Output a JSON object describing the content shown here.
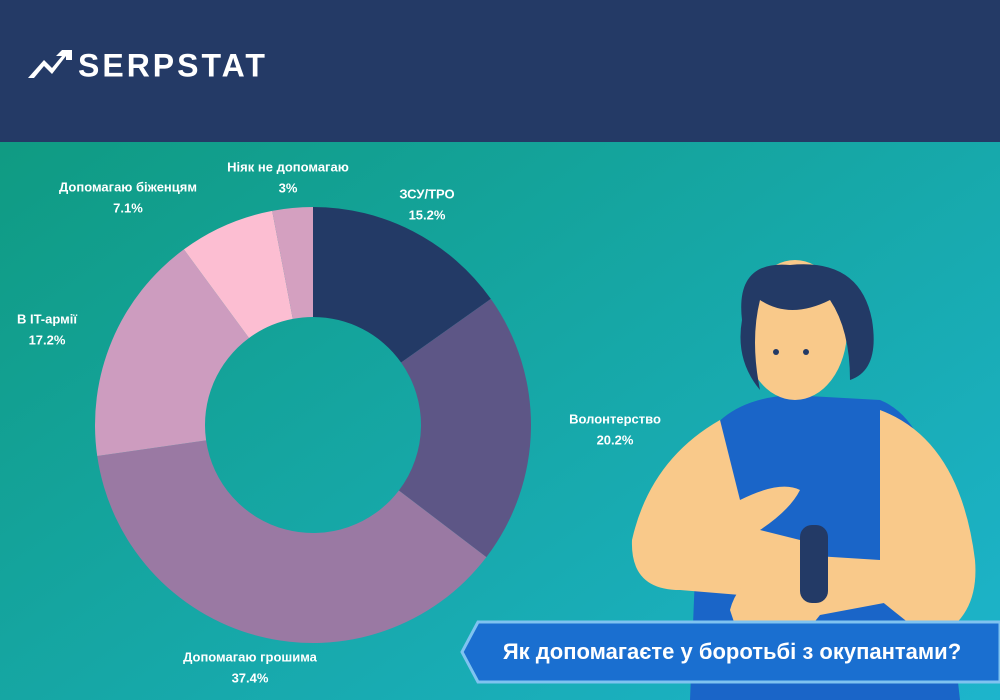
{
  "brand": "SERPSTAT",
  "chart_data": {
    "type": "donut",
    "title": "Як допомагаєте у боротьбі з окупантами?",
    "categories": [
      "ЗСУ/ТРО",
      "Волонтерство",
      "Допомагаю грошима",
      "В IT-армії",
      "Допомагаю біженцям",
      "Ніяк не допомагаю"
    ],
    "values": [
      15.2,
      20.2,
      37.4,
      17.2,
      7.1,
      3
    ],
    "value_labels": [
      "15.2%",
      "20.2%",
      "37.4%",
      "17.2%",
      "7.1%",
      "3%"
    ],
    "colors": [
      "#233a66",
      "#5d5686",
      "#9a79a3",
      "#cd9cbf",
      "#fcbed2",
      "#d4a0c0"
    ]
  }
}
